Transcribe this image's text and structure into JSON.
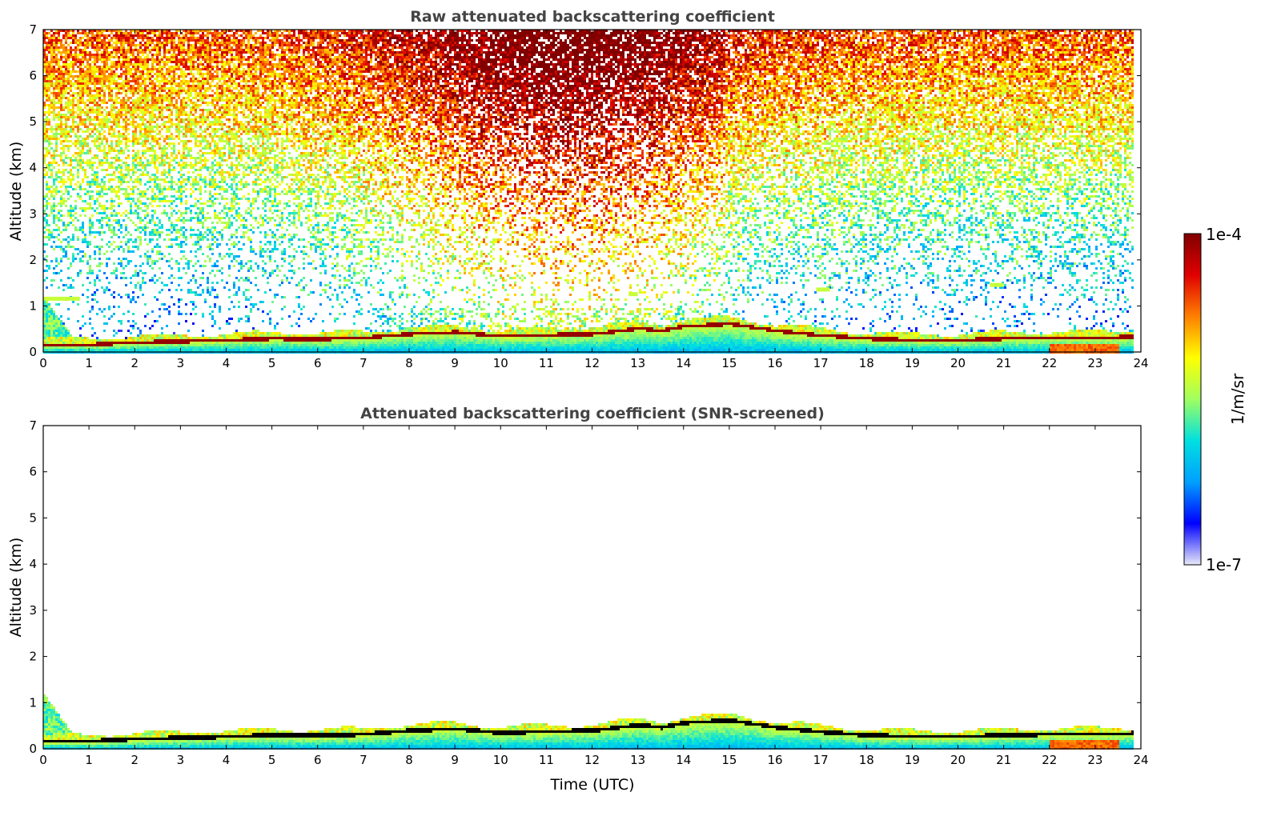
{
  "chart_data": [
    {
      "type": "heatmap",
      "title": "Raw attenuated backscattering coefficient",
      "xlabel": "",
      "ylabel": "Altitude (km)",
      "xlim": [
        0,
        24
      ],
      "ylim": [
        0,
        7
      ],
      "x_ticks": [
        "0",
        "1",
        "2",
        "3",
        "4",
        "5",
        "6",
        "7",
        "8",
        "9",
        "10",
        "11",
        "12",
        "13",
        "14",
        "15",
        "16",
        "17",
        "18",
        "19",
        "20",
        "21",
        "22",
        "23",
        "24"
      ],
      "y_ticks": [
        "0",
        "1",
        "2",
        "3",
        "4",
        "5",
        "6",
        "7"
      ],
      "data_end_hour": 23.8,
      "boundary_layer_km": [
        [
          0,
          0.15
        ],
        [
          1,
          0.15
        ],
        [
          2,
          0.2
        ],
        [
          3,
          0.22
        ],
        [
          4,
          0.25
        ],
        [
          5,
          0.28
        ],
        [
          6,
          0.27
        ],
        [
          7,
          0.3
        ],
        [
          8,
          0.38
        ],
        [
          9,
          0.42
        ],
        [
          10,
          0.33
        ],
        [
          11,
          0.36
        ],
        [
          12,
          0.38
        ],
        [
          13,
          0.5
        ],
        [
          13.5,
          0.45
        ],
        [
          14,
          0.55
        ],
        [
          15,
          0.6
        ],
        [
          16,
          0.45
        ],
        [
          17,
          0.35
        ],
        [
          18,
          0.28
        ],
        [
          19,
          0.25
        ],
        [
          20,
          0.25
        ],
        [
          21,
          0.28
        ],
        [
          22,
          0.3
        ],
        [
          23,
          0.3
        ],
        [
          23.8,
          0.32
        ]
      ],
      "features": [
        {
          "desc": "residual layer plume",
          "x": [
            0,
            0.8
          ],
          "top_km": 1.2
        },
        {
          "desc": "elevated aerosol",
          "x": [
            12.8,
            13.0
          ],
          "alt_km": 1.3
        },
        {
          "desc": "elevated aerosol",
          "x": [
            16.9,
            17.2
          ],
          "alt_km": 1.4
        },
        {
          "desc": "elevated aerosol",
          "x": [
            20.7,
            21.0
          ],
          "alt_km": 1.5
        }
      ]
    },
    {
      "type": "heatmap",
      "title": "Attenuated backscattering coefficient (SNR-screened)",
      "xlabel": "Time (UTC)",
      "ylabel": "Altitude (km)",
      "xlim": [
        0,
        24
      ],
      "ylim": [
        0,
        7
      ],
      "x_ticks": [
        "0",
        "1",
        "2",
        "3",
        "4",
        "5",
        "6",
        "7",
        "8",
        "9",
        "10",
        "11",
        "12",
        "13",
        "14",
        "15",
        "16",
        "17",
        "18",
        "19",
        "20",
        "21",
        "22",
        "23",
        "24"
      ],
      "y_ticks": [
        "0",
        "1",
        "2",
        "3",
        "4",
        "5",
        "6",
        "7"
      ],
      "data_end_hour": 23.8
    }
  ],
  "colorbar": {
    "label": "1/m/sr",
    "max_label": "1e-4",
    "min_label": "1e-7",
    "scale": "log",
    "colormap": [
      "#e8e8f8",
      "#0000ff",
      "#00a0ff",
      "#00e0e0",
      "#a0ff60",
      "#ffff00",
      "#ff8000",
      "#e00000",
      "#800000"
    ]
  }
}
